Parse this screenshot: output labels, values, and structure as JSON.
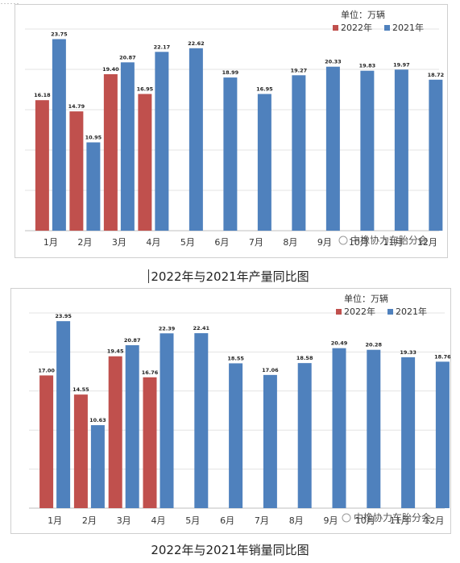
{
  "top_strip_text": "……",
  "charts": [
    {
      "caption": "2022年与2021年产量同比图",
      "unit": "单位：万辆",
      "watermark": "中橡协力车胎分会",
      "legend": [
        {
          "name": "2022年",
          "color": "#c0504d"
        },
        {
          "name": "2021年",
          "color": "#4f81bd"
        }
      ]
    },
    {
      "caption": "2022年与2021年销量同比图",
      "unit": "单位：万辆",
      "watermark": "中橡协力车胎分会",
      "legend": [
        {
          "name": "2022年",
          "color": "#c0504d"
        },
        {
          "name": "2021年",
          "color": "#4f81bd"
        }
      ]
    }
  ],
  "chart_data": [
    {
      "type": "bar",
      "title": "2022年与2021年产量同比图",
      "unit": "单位：万辆",
      "categories": [
        "1月",
        "2月",
        "3月",
        "4月",
        "5月",
        "6月",
        "7月",
        "8月",
        "9月",
        "10月",
        "11月",
        "12月"
      ],
      "series": [
        {
          "name": "2022年",
          "color": "#c0504d",
          "values": [
            16.18,
            14.79,
            19.4,
            16.95,
            null,
            null,
            null,
            null,
            null,
            null,
            null,
            null
          ]
        },
        {
          "name": "2021年",
          "color": "#4f81bd",
          "values": [
            23.75,
            10.95,
            20.87,
            22.17,
            22.62,
            18.99,
            16.95,
            19.27,
            20.33,
            19.83,
            19.97,
            18.72
          ]
        }
      ],
      "ylim": [
        0,
        25
      ],
      "y_axis_labels": false,
      "grid": true,
      "legend_position": "top-right"
    },
    {
      "type": "bar",
      "title": "2022年与2021年销量同比图",
      "unit": "单位：万辆",
      "categories": [
        "1月",
        "2月",
        "3月",
        "4月",
        "5月",
        "6月",
        "7月",
        "8月",
        "9月",
        "10月",
        "11月",
        "12月"
      ],
      "series": [
        {
          "name": "2022年",
          "color": "#c0504d",
          "values": [
            17.0,
            14.55,
            19.45,
            16.76,
            null,
            null,
            null,
            null,
            null,
            null,
            null,
            null
          ]
        },
        {
          "name": "2021年",
          "color": "#4f81bd",
          "values": [
            23.95,
            10.63,
            20.87,
            22.39,
            22.41,
            18.55,
            17.06,
            18.58,
            20.49,
            20.28,
            19.33,
            18.76
          ]
        }
      ],
      "ylim": [
        0,
        25
      ],
      "y_axis_labels": false,
      "grid": true,
      "legend_position": "top-right"
    }
  ]
}
